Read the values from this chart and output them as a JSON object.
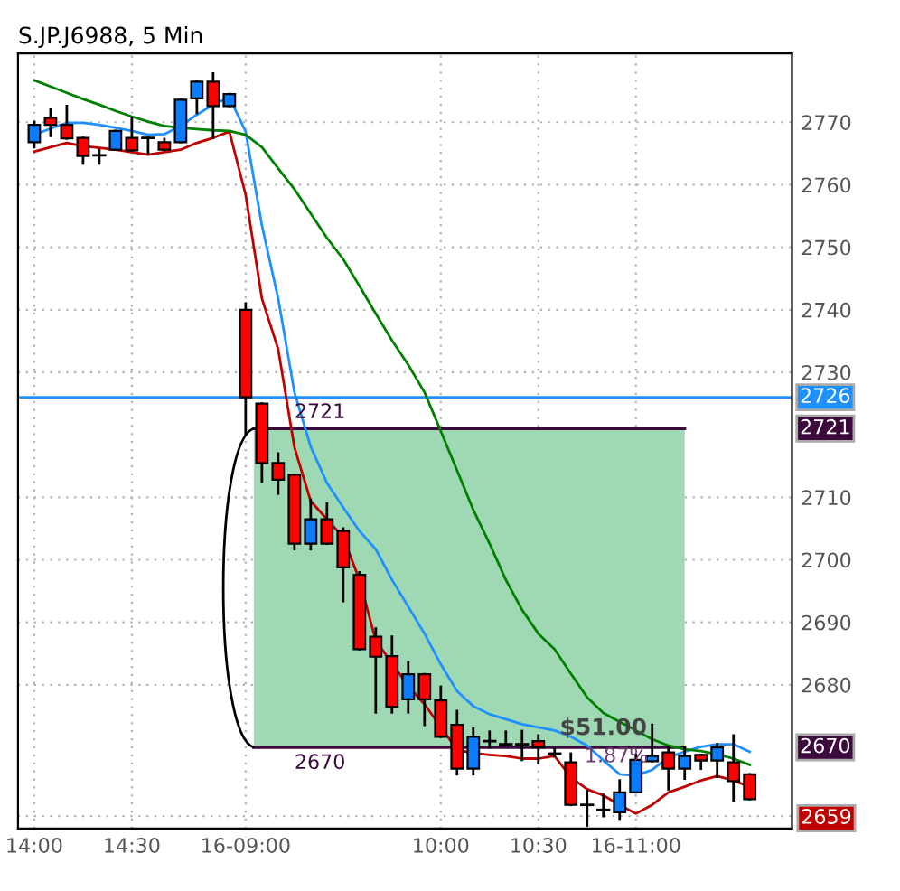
{
  "chart_data": {
    "type": "candlestick",
    "title": "S.JP.J6988, 5 Min",
    "categories": [
      "14:00",
      null,
      null,
      null,
      null,
      null,
      "14:30",
      null,
      null,
      null,
      null,
      null,
      null,
      "16-09:00",
      null,
      null,
      null,
      null,
      null,
      null,
      null,
      null,
      null,
      null,
      null,
      "10:00",
      null,
      null,
      null,
      null,
      null,
      "10:30",
      null,
      null,
      null,
      null,
      null,
      "16-11:00",
      null,
      null,
      null,
      null,
      null,
      null,
      null
    ],
    "ohlc": [
      [
        2766.8,
        2770,
        2766,
        2769.6
      ],
      [
        2770.7,
        2772,
        2767.8,
        2769.6
      ],
      [
        2769.6,
        2772.6,
        2767.4,
        2767.4
      ],
      [
        2767.5,
        2767.5,
        2763.4,
        2764.6
      ],
      [
        2764.7,
        2765.5,
        2763.4,
        2764.7
      ],
      [
        2765.6,
        2768.6,
        2765.6,
        2768.6
      ],
      [
        2767.5,
        2770.7,
        2765.5,
        2765.5
      ],
      [
        2767.5,
        2767.5,
        2765,
        2767.5
      ],
      [
        2766.8,
        2767.3,
        2765.6,
        2765.6
      ],
      [
        2766.8,
        2773.6,
        2766.8,
        2773.6
      ],
      [
        2773.8,
        2776.5,
        2771.5,
        2776.5
      ],
      [
        2776.5,
        2777.8,
        2767.5,
        2772.6
      ],
      [
        2772.6,
        2774.5,
        2772.6,
        2774.5
      ],
      [
        2740,
        2741,
        2720,
        2726
      ],
      [
        2725,
        2725,
        2712.5,
        2715.5
      ],
      [
        2715.5,
        2717,
        2710.6,
        2712.8
      ],
      [
        2713.6,
        2713.6,
        2701.7,
        2702.6
      ],
      [
        2702.6,
        2709.6,
        2701.7,
        2706.5
      ],
      [
        2706.5,
        2709,
        2702.6,
        2702.6
      ],
      [
        2704.6,
        2705,
        2693.4,
        2698.8
      ],
      [
        2697.6,
        2698,
        2685.7,
        2685.7
      ],
      [
        2687.7,
        2689,
        2675.6,
        2684.5
      ],
      [
        2684.6,
        2687.7,
        2675.6,
        2676.5
      ],
      [
        2677.7,
        2683.6,
        2675.6,
        2681.7
      ],
      [
        2681.7,
        2681.7,
        2673.6,
        2677.7
      ],
      [
        2677.5,
        2679.7,
        2671.7,
        2671.7
      ],
      [
        2673.6,
        2675.8,
        2665.7,
        2666.6
      ],
      [
        2666.6,
        2673,
        2665.7,
        2671.7
      ],
      [
        2671,
        2672.5,
        2670,
        2671
      ],
      [
        2670.5,
        2672.5,
        2670.5,
        2670.5
      ],
      [
        2670.5,
        2672.6,
        2668,
        2670.5
      ],
      [
        2671,
        2671.9,
        2667.5,
        2670
      ],
      [
        2669,
        2669.8,
        2668.6,
        2669
      ],
      [
        2667.6,
        2669,
        2660.8,
        2660.8
      ],
      [
        2660.8,
        2663,
        2657.5,
        2660.8
      ],
      [
        2660,
        2662.4,
        2659,
        2660
      ],
      [
        2659.6,
        2664.7,
        2658.6,
        2662.8
      ],
      [
        2662.8,
        2668.8,
        2662.8,
        2668
      ],
      [
        2667.8,
        2673.6,
        2667.8,
        2668.6
      ],
      [
        2669.2,
        2670,
        2663.3,
        2666.6
      ],
      [
        2666.6,
        2670,
        2665,
        2668.6
      ],
      [
        2668.8,
        2668.8,
        2666.6,
        2667.9
      ],
      [
        2667.9,
        2670.5,
        2665.3,
        2670
      ],
      [
        2667.6,
        2671.9,
        2661.5,
        2664.6
      ],
      [
        2665.7,
        2665.7,
        2661.7,
        2661.7
      ]
    ],
    "series": [
      {
        "type": "line",
        "color": "#1e90ff",
        "values": [
          2768,
          2769,
          2769.9,
          2769.9,
          2769.6,
          2769.1,
          2768.6,
          2768,
          2768.1,
          2769.4,
          2771.2,
          2772.8,
          2774,
          2768.5,
          2753.5,
          2741.8,
          2726.8,
          2718.1,
          2712.3,
          2708.4,
          2704.6,
          2701.7,
          2696.8,
          2692.5,
          2688.2,
          2683.3,
          2679,
          2676.6,
          2675.3,
          2674.5,
          2673.7,
          2673.2,
          2672.7,
          2671.7,
          2670.3,
          2667.9,
          2665.7,
          2665.5,
          2666.4,
          2668.4,
          2669.3,
          2670.1,
          2670.5,
          2670.5,
          2669.3
        ]
      },
      {
        "type": "line",
        "color": "#c00000",
        "values": [
          2765.3,
          2766,
          2766.7,
          2766.2,
          2765.9,
          2765.6,
          2765.2,
          2764.8,
          2765.2,
          2765.6,
          2766.7,
          2767.5,
          2768.5,
          2758.4,
          2741.8,
          2733.7,
          2718,
          2709.4,
          2706.5,
          2703.6,
          2696.8,
          2687.1,
          null,
          2679.8,
          2676.9,
          null,
          2669.6,
          2669.1,
          2668.8,
          2668.6,
          2668.2,
          2668.2,
          2668.6,
          2665.2,
          2663.3,
          2662.3,
          2660.8,
          2659.4,
          2660.8,
          2662.8,
          2663.7,
          2664.7,
          2665.4,
          2664.7,
          2663.7
        ]
      },
      {
        "type": "line",
        "color": "#008000",
        "values": [
          2776.7,
          2775.7,
          2774.7,
          2773.7,
          2772.8,
          2771.8,
          2770.9,
          2770.1,
          2769.4,
          2769.1,
          2768.9,
          2768.7,
          2768.6,
          2768,
          2766,
          2762.6,
          2759.3,
          2755.4,
          2751.5,
          2748.1,
          2743.8,
          2739.4,
          2735.1,
          2731.2,
          2726.8,
          2720.6,
          2714.3,
          2708,
          2702.6,
          2696.8,
          2692,
          2688.2,
          2685.7,
          2681.8,
          2678,
          2675.5,
          2674.1,
          2672.7,
          2671.3,
          2670.3,
          2669.7,
          2669.4,
          2668.9,
          2668.2,
          2667.2
        ]
      }
    ],
    "ylim": [
      2657,
      2781
    ],
    "yticks": [
      {
        "value": 2659,
        "label": "2659"
      },
      2680,
      2690,
      2700,
      2710,
      2730,
      2740,
      2750,
      2760,
      2770
    ],
    "grid": true,
    "marker": "none",
    "line_style": "solid",
    "ref_lines": [
      {
        "axis": "y",
        "value": 2726,
        "label": "2726",
        "color": "#1e90ff",
        "line_style": "solid"
      },
      {
        "axis": "y",
        "value": 2721,
        "label": "2721",
        "color": "#3c0a3c",
        "line_style": "solid"
      },
      {
        "axis": "y",
        "value": 2670,
        "label": "2670",
        "color": "#3c0a3c",
        "line_style": "solid"
      }
    ],
    "bands": [
      {
        "axis": "y",
        "from": 2670,
        "to": 2721,
        "color": "#9fd9b4"
      }
    ],
    "annotations": [
      "$51.00",
      "1.87%"
    ]
  }
}
